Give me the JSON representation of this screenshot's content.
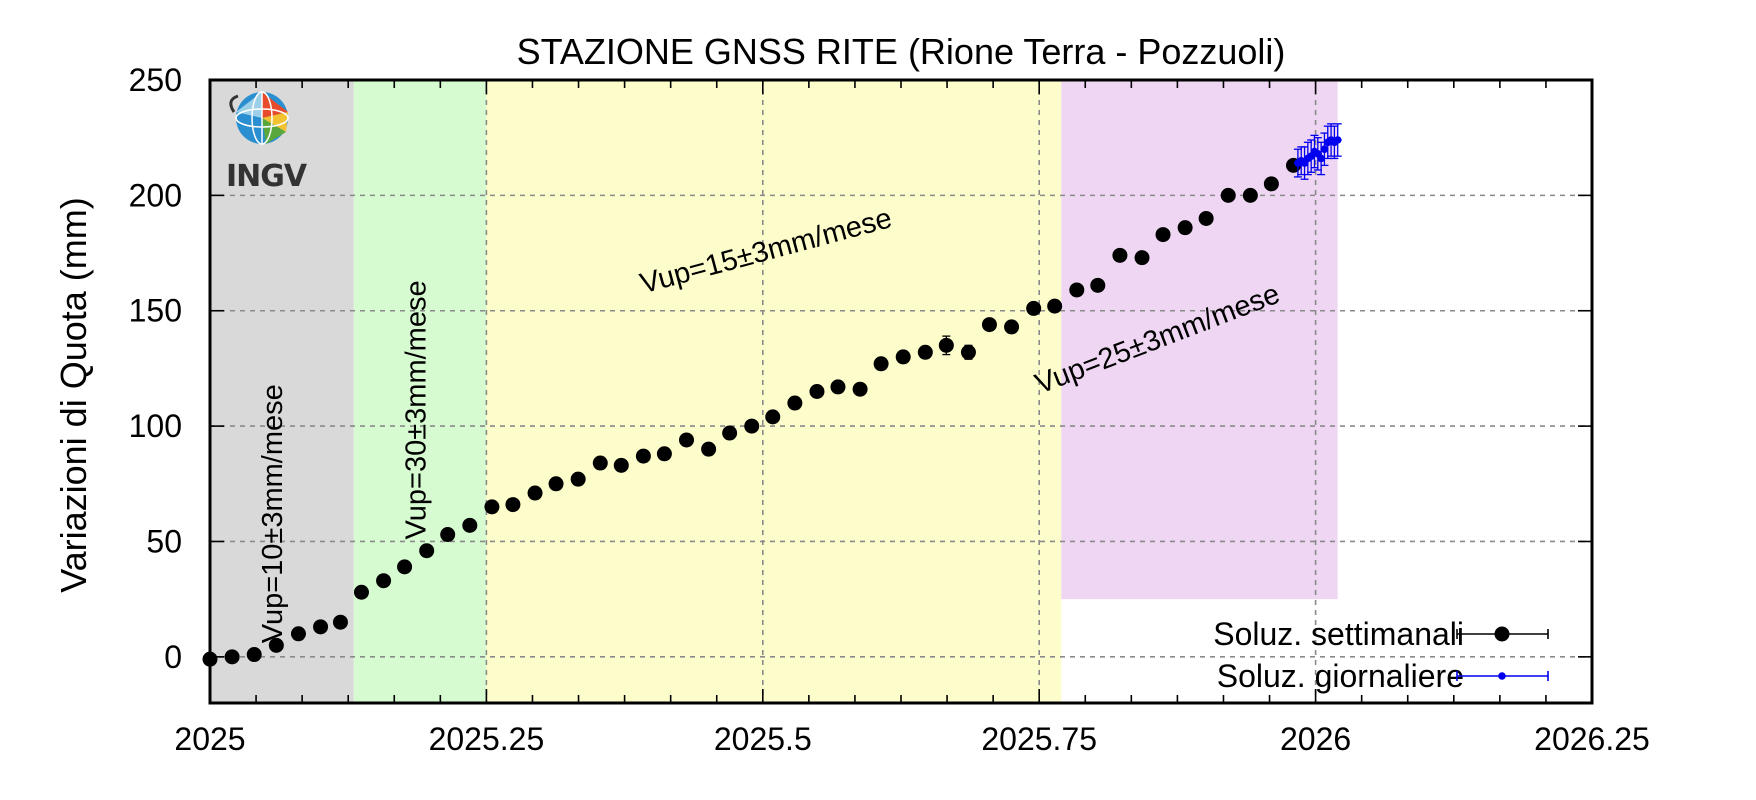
{
  "chart_data": {
    "type": "scatter",
    "title": "STAZIONE GNSS RITE (Rione Terra - Pozzuoli)",
    "ylabel": "Variazioni di Quota (mm)",
    "xlabel": "",
    "xlim": [
      2025,
      2026.25
    ],
    "ylim": [
      -20,
      250
    ],
    "grid": true,
    "x_ticks": [
      2025,
      2025.25,
      2025.5,
      2025.75,
      2026,
      2026.25
    ],
    "x_tick_labels": [
      "2025",
      "2025.25",
      "2025.5",
      "2025.75",
      "2026",
      "2026.25"
    ],
    "y_ticks": [
      0,
      50,
      100,
      150,
      200,
      250
    ],
    "y_tick_labels": [
      "0",
      "50",
      "100",
      "150",
      "200",
      "250"
    ],
    "logo_text": "INGV",
    "periods": [
      {
        "x0": 2025.0,
        "x1": 2025.13,
        "y0": -20,
        "y1": 250,
        "color": "#d9d9d9",
        "label": "Vup=10±3mm/mese"
      },
      {
        "x0": 2025.13,
        "x1": 2025.25,
        "y0": -20,
        "y1": 250,
        "color": "#d6fbd0",
        "label": "Vup=30±3mm/mese"
      },
      {
        "x0": 2025.25,
        "x1": 2025.77,
        "y0": -20,
        "y1": 250,
        "color": "#fdfdcb",
        "label": "Vup=15±3mm/mese"
      },
      {
        "x0": 2025.77,
        "x1": 2026.02,
        "y0": 25,
        "y1": 250,
        "color": "#efd6f3",
        "label": "Vup=25±3mm/mese"
      }
    ],
    "annotations": [
      {
        "text": "Vup=10±3mm/mese",
        "x": 2025.065,
        "y": 62,
        "angle": -90
      },
      {
        "text": "Vup=30±3mm/mese",
        "x": 2025.195,
        "y": 107,
        "angle": -90
      },
      {
        "text": "Vup=15±3mm/mese",
        "x": 2025.505,
        "y": 172,
        "angle": -15
      },
      {
        "text": "Vup=25±3mm/mese",
        "x": 2025.86,
        "y": 134,
        "angle": -21
      }
    ],
    "legend_position": "bottom-right",
    "series": [
      {
        "name": "Soluz. settimanali",
        "color": "#000000",
        "marker": "large-dot",
        "points": [
          [
            2025.0,
            -1,
            2
          ],
          [
            2025.02,
            0,
            2
          ],
          [
            2025.04,
            1,
            2
          ],
          [
            2025.06,
            5,
            2
          ],
          [
            2025.08,
            10,
            2
          ],
          [
            2025.1,
            13,
            2
          ],
          [
            2025.118,
            15,
            2
          ],
          [
            2025.137,
            28,
            2
          ],
          [
            2025.157,
            33,
            2
          ],
          [
            2025.176,
            39,
            2
          ],
          [
            2025.196,
            46,
            2
          ],
          [
            2025.215,
            53,
            2
          ],
          [
            2025.235,
            57,
            2
          ],
          [
            2025.255,
            65,
            2
          ],
          [
            2025.274,
            66,
            2
          ],
          [
            2025.294,
            71,
            2
          ],
          [
            2025.313,
            75,
            2
          ],
          [
            2025.333,
            77,
            2
          ],
          [
            2025.353,
            84,
            2
          ],
          [
            2025.372,
            83,
            2
          ],
          [
            2025.392,
            87,
            2
          ],
          [
            2025.411,
            88,
            2
          ],
          [
            2025.431,
            94,
            2
          ],
          [
            2025.451,
            90,
            2
          ],
          [
            2025.47,
            97,
            2
          ],
          [
            2025.49,
            100,
            2
          ],
          [
            2025.509,
            104,
            2
          ],
          [
            2025.529,
            110,
            2
          ],
          [
            2025.549,
            115,
            2
          ],
          [
            2025.568,
            117,
            2
          ],
          [
            2025.588,
            116,
            2
          ],
          [
            2025.607,
            127,
            2
          ],
          [
            2025.627,
            130,
            2
          ],
          [
            2025.647,
            132,
            2
          ],
          [
            2025.666,
            135,
            4
          ],
          [
            2025.686,
            132,
            3
          ],
          [
            2025.705,
            144,
            2
          ],
          [
            2025.725,
            143,
            2
          ],
          [
            2025.745,
            151,
            2
          ],
          [
            2025.764,
            152,
            2
          ],
          [
            2025.784,
            159,
            2
          ],
          [
            2025.803,
            161,
            2
          ],
          [
            2025.823,
            174,
            2
          ],
          [
            2025.843,
            173,
            2
          ],
          [
            2025.862,
            183,
            2
          ],
          [
            2025.882,
            186,
            2
          ],
          [
            2025.901,
            190,
            2
          ],
          [
            2025.921,
            200,
            2
          ],
          [
            2025.941,
            200,
            2
          ],
          [
            2025.96,
            205,
            2
          ],
          [
            2025.98,
            213,
            2
          ]
        ]
      },
      {
        "name": "Soluz. giornaliere",
        "color": "#0000ee",
        "marker": "small-dot",
        "points": [
          [
            2025.984,
            214,
            6
          ],
          [
            2025.987,
            215,
            6
          ],
          [
            2025.99,
            214,
            7
          ],
          [
            2025.993,
            216,
            7
          ],
          [
            2025.996,
            217,
            7
          ],
          [
            2025.999,
            219,
            7
          ],
          [
            2026.002,
            218,
            7
          ],
          [
            2026.005,
            216,
            7
          ],
          [
            2026.008,
            220,
            7
          ],
          [
            2026.011,
            223,
            7
          ],
          [
            2026.014,
            224,
            7
          ],
          [
            2026.017,
            223,
            7
          ],
          [
            2026.02,
            224,
            7
          ]
        ]
      }
    ]
  }
}
